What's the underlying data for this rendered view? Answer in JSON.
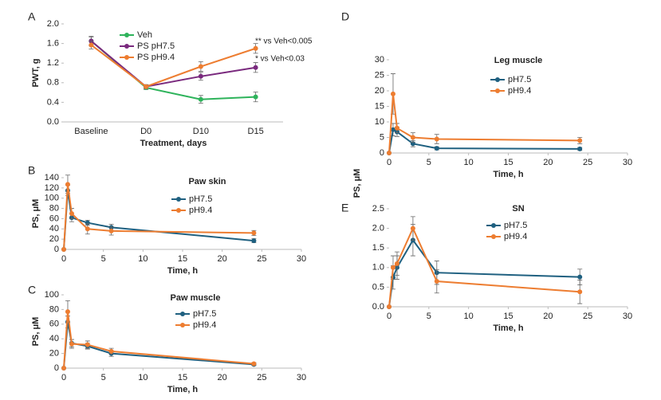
{
  "chart_data": [
    {
      "type": "line",
      "panel": "A",
      "ylabel": "PWT, g",
      "xlabel": "Treatment, days",
      "categories": [
        "Baseline",
        "D0",
        "D10",
        "D15"
      ],
      "ylim": [
        0,
        2
      ],
      "yticks": [
        {
          "value": 0,
          "label": "0.0"
        },
        0.4,
        0.8,
        1.2,
        1.6,
        {
          "value": 2,
          "label": "2.0"
        }
      ],
      "legend": "top-center",
      "annotations": [
        "** vs Veh<0.005",
        "* vs Veh<0.03"
      ],
      "series": [
        {
          "name": "Veh",
          "color": "#2eb35b",
          "values": [
            1.65,
            0.7,
            0.46,
            0.51
          ],
          "errors": [
            0.1,
            0.04,
            0.08,
            0.1
          ]
        },
        {
          "name": "PS pH7.5",
          "color": "#7a2a7e",
          "values": [
            1.65,
            0.72,
            0.93,
            1.11
          ],
          "errors": [
            0.08,
            0.04,
            0.08,
            0.1
          ]
        },
        {
          "name": "PS pH9.4",
          "color": "#ed7d31",
          "values": [
            1.57,
            0.72,
            1.13,
            1.5
          ],
          "errors": [
            0.08,
            0.04,
            0.1,
            0.1
          ]
        }
      ]
    },
    {
      "type": "line",
      "panel": "B",
      "title": "Paw skin",
      "ylabel": "PS, μM",
      "xlabel": "Time, h",
      "x": [
        0,
        0.5,
        1,
        3,
        6,
        24
      ],
      "xlim": [
        0,
        30
      ],
      "xticks": [
        0,
        5,
        10,
        15,
        20,
        25,
        30
      ],
      "ylim": [
        0,
        140
      ],
      "yticks": [
        0,
        20,
        40,
        60,
        80,
        100,
        120,
        140
      ],
      "legend": "top-center",
      "series": [
        {
          "name": "pH7.5",
          "color": "#1f6080",
          "values": [
            0,
            115,
            62,
            52,
            43,
            17
          ],
          "errors": [
            0,
            10,
            8,
            5,
            6,
            4
          ]
        },
        {
          "name": "pH9.4",
          "color": "#ed7d31",
          "values": [
            0,
            127,
            70,
            40,
            36,
            32
          ],
          "errors": [
            0,
            18,
            10,
            10,
            8,
            5
          ]
        }
      ]
    },
    {
      "type": "line",
      "panel": "C",
      "title": "Paw muscle",
      "ylabel": "PS, μM",
      "xlabel": "Time, h",
      "x": [
        0,
        0.5,
        1,
        3,
        6,
        24
      ],
      "xlim": [
        0,
        30
      ],
      "xticks": [
        0,
        5,
        10,
        15,
        20,
        25,
        30
      ],
      "ylim": [
        0,
        100
      ],
      "yticks": [
        0,
        20,
        40,
        60,
        80,
        100
      ],
      "legend": "top-center",
      "series": [
        {
          "name": "pH7.5",
          "color": "#1f6080",
          "values": [
            0,
            63,
            34,
            30,
            20,
            5
          ],
          "errors": [
            0,
            8,
            5,
            4,
            4,
            1.5
          ]
        },
        {
          "name": "pH9.4",
          "color": "#ed7d31",
          "values": [
            0,
            77,
            33,
            32,
            23,
            6
          ],
          "errors": [
            0,
            15,
            6,
            5,
            4,
            1.5
          ]
        }
      ]
    },
    {
      "type": "line",
      "panel": "D",
      "title": "Leg muscle",
      "ylabel": "PS, μM",
      "xlabel": "Time, h",
      "x": [
        0,
        0.5,
        1,
        3,
        6,
        24
      ],
      "xlim": [
        0,
        30
      ],
      "xticks": [
        0,
        5,
        10,
        15,
        20,
        25,
        30
      ],
      "ylim": [
        0,
        30
      ],
      "yticks": [
        0,
        5,
        10,
        15,
        20,
        25,
        30
      ],
      "legend": "top-center",
      "series": [
        {
          "name": "pH7.5",
          "color": "#1f6080",
          "values": [
            0,
            7.5,
            6.8,
            3,
            1.5,
            1.3
          ],
          "errors": [
            0,
            2,
            1.5,
            1,
            0.5,
            0.5
          ]
        },
        {
          "name": "pH9.4",
          "color": "#ed7d31",
          "values": [
            0,
            19,
            8,
            5,
            4.5,
            4
          ],
          "errors": [
            0,
            6.5,
            1.5,
            1.5,
            1.5,
            1
          ]
        }
      ]
    },
    {
      "type": "line",
      "panel": "E",
      "title": "SN",
      "xlabel": "Time, h",
      "x": [
        0,
        0.5,
        1,
        3,
        6,
        24
      ],
      "xlim": [
        0,
        30
      ],
      "xticks": [
        0,
        5,
        10,
        15,
        20,
        25,
        30
      ],
      "ylim": [
        0,
        2.5
      ],
      "yticks": [
        {
          "value": 0,
          "label": "0.0"
        },
        0.5,
        {
          "value": 1,
          "label": "1.0"
        },
        1.5,
        {
          "value": 2,
          "label": "2.0"
        },
        2.5
      ],
      "legend": "top-center",
      "series": [
        {
          "name": "pH7.5",
          "color": "#1f6080",
          "values": [
            0,
            0.75,
            1.0,
            1.7,
            0.87,
            0.76
          ],
          "errors": [
            0,
            0.3,
            0.3,
            0.4,
            0.3,
            0.2
          ]
        },
        {
          "name": "pH9.4",
          "color": "#ed7d31",
          "values": [
            0,
            1.0,
            1.1,
            2.0,
            0.65,
            0.38
          ],
          "errors": [
            0,
            0.3,
            0.3,
            0.3,
            0.3,
            0.3
          ]
        }
      ]
    }
  ]
}
